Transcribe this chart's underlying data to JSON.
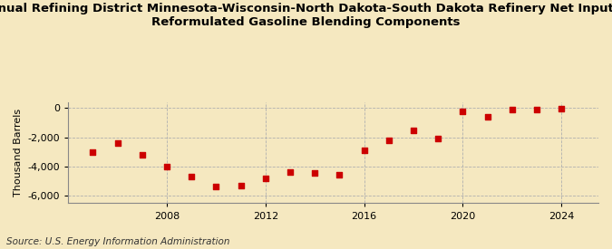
{
  "title": "Annual Refining District Minnesota-Wisconsin-North Dakota-South Dakota Refinery Net Input of\nReformulated Gasoline Blending Components",
  "ylabel": "Thousand Barrels",
  "source": "Source: U.S. Energy Information Administration",
  "background_color": "#f5e8c0",
  "plot_background_color": "#f5e8c0",
  "years": [
    2005,
    2006,
    2007,
    2008,
    2009,
    2010,
    2011,
    2012,
    2013,
    2014,
    2015,
    2016,
    2017,
    2018,
    2019,
    2020,
    2021,
    2022,
    2023,
    2024
  ],
  "values": [
    -3000,
    -2400,
    -3200,
    -4000,
    -4700,
    -5350,
    -5300,
    -4800,
    -4350,
    -4400,
    -4550,
    -2900,
    -2200,
    -1500,
    -2050,
    -200,
    -600,
    -100,
    -80,
    -50
  ],
  "marker_color": "#cc0000",
  "ylim": [
    -6500,
    400
  ],
  "yticks": [
    0,
    -2000,
    -4000,
    -6000
  ],
  "xlim": [
    2004,
    2025.5
  ],
  "xticks": [
    2008,
    2012,
    2016,
    2020,
    2024
  ],
  "title_fontsize": 9.5,
  "axis_fontsize": 8,
  "source_fontsize": 7.5
}
